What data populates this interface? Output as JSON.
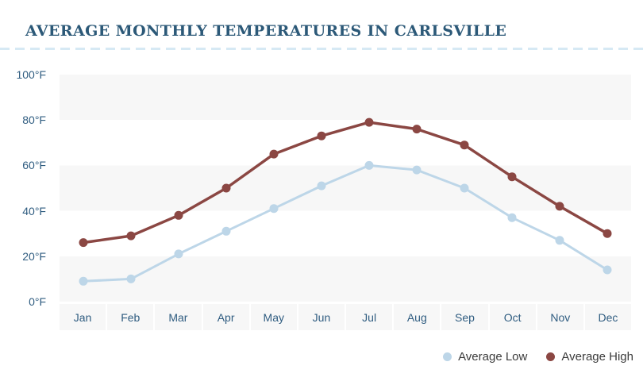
{
  "title": "AVERAGE MONTHLY TEMPERATURES IN CARLSVILLE",
  "colors": {
    "title_text": "#2C5978",
    "axis_text": "#2F5C80",
    "band_gray": "#F7F7F7",
    "divider_blue": "#D6E9F4",
    "legend_text": "#3B3B3B",
    "average_low": "#BDD6E8",
    "average_high": "#8B4743"
  },
  "chart_data": {
    "type": "line",
    "title": "AVERAGE MONTHLY TEMPERATURES IN CARLSVILLE",
    "categories": [
      "Jan",
      "Feb",
      "Mar",
      "Apr",
      "May",
      "Jun",
      "Jul",
      "Aug",
      "Sep",
      "Oct",
      "Nov",
      "Dec"
    ],
    "series": [
      {
        "name": "Average Low",
        "color": "#BDD6E8",
        "values": [
          9,
          10,
          21,
          31,
          41,
          51,
          60,
          58,
          50,
          37,
          27,
          14
        ]
      },
      {
        "name": "Average High",
        "color": "#8B4743",
        "values": [
          26,
          29,
          38,
          50,
          65,
          73,
          79,
          76,
          69,
          55,
          42,
          30
        ]
      }
    ],
    "unit": "°F",
    "yticks": [
      "100°F",
      "80°F",
      "60°F",
      "40°F",
      "20°F",
      "0°F"
    ],
    "ytick_values": [
      100,
      80,
      60,
      40,
      20,
      0
    ],
    "ylim": [
      0,
      100
    ],
    "xlabel": "",
    "ylabel": "",
    "grid": "banded-horizontal",
    "legend_position": "bottom-right"
  },
  "legend": {
    "items": [
      {
        "label": "Average Low"
      },
      {
        "label": "Average High"
      }
    ]
  }
}
